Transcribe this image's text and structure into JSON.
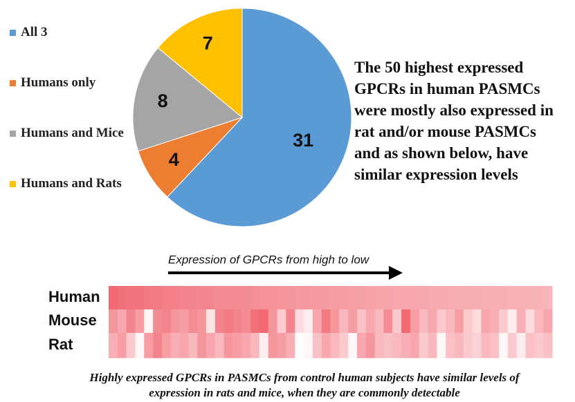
{
  "chart_data": [
    {
      "type": "pie",
      "categories": [
        "All 3",
        "Humans only",
        "Humans and Mice",
        "Humans and Rats"
      ],
      "values": [
        31,
        4,
        8,
        7
      ],
      "colors": [
        "#5b9bd5",
        "#ed7d31",
        "#a5a5a5",
        "#ffc000"
      ],
      "legend": "left",
      "annotation": "The 50 highest expressed GPCRs in human PASMCs were mostly also expressed in rat and/or mouse PASMCs and as shown below, have similar expression levels"
    },
    {
      "type": "heatmap",
      "annotation": "Expression of GPCRs from high to low",
      "caption": "Highly expressed GPCRs in PASMCs from control human subjects have similar levels of expression in rats and mice, when they are commonly detectable",
      "color_low": "#ffffff",
      "color_high": "#ee4e5a",
      "series": [
        {
          "name": "Human",
          "values": [
            0.85,
            0.8,
            0.78,
            0.78,
            0.75,
            0.75,
            0.72,
            0.72,
            0.7,
            0.7,
            0.68,
            0.68,
            0.66,
            0.66,
            0.65,
            0.65,
            0.63,
            0.62,
            0.62,
            0.6,
            0.6,
            0.58,
            0.58,
            0.57,
            0.56,
            0.55,
            0.55,
            0.54,
            0.53,
            0.52,
            0.52,
            0.51,
            0.5,
            0.5,
            0.5,
            0.49,
            0.48,
            0.48,
            0.47,
            0.47,
            0.46,
            0.46,
            0.45,
            0.45,
            0.45,
            0.44,
            0.44,
            0.43,
            0.43,
            0.42
          ]
        },
        {
          "name": "Mouse",
          "values": [
            0.6,
            0.5,
            0.7,
            0.55,
            0.05,
            0.65,
            0.7,
            0.6,
            0.55,
            0.65,
            0.6,
            0.15,
            0.7,
            0.75,
            0.7,
            0.65,
            0.8,
            0.85,
            0.6,
            0.3,
            0.7,
            0.2,
            0.1,
            0.5,
            0.75,
            0.6,
            0.4,
            0.55,
            0.35,
            0.5,
            0.4,
            0.65,
            0.3,
            0.85,
            0.55,
            0.4,
            0.5,
            0.3,
            0.4,
            0.55,
            0.3,
            0.2,
            0.5,
            0.45,
            0.3,
            0.1,
            0.45,
            0.2,
            0.4,
            0.5
          ]
        },
        {
          "name": "Rat",
          "values": [
            0.45,
            0.55,
            0.3,
            0.05,
            0.55,
            0.7,
            0.55,
            0.45,
            0.5,
            0.4,
            0.6,
            0.5,
            0.4,
            0.6,
            0.55,
            0.5,
            0.4,
            0.1,
            0.6,
            0.55,
            0.45,
            0.0,
            0.05,
            0.35,
            0.5,
            0.4,
            0.3,
            0.05,
            0.5,
            0.6,
            0.4,
            0.35,
            0.4,
            0.45,
            0.5,
            0.3,
            0.4,
            0.05,
            0.35,
            0.4,
            0.3,
            0.25,
            0.4,
            0.35,
            0.05,
            0.3,
            0.1,
            0.35,
            0.3,
            0.35
          ]
        }
      ]
    }
  ]
}
